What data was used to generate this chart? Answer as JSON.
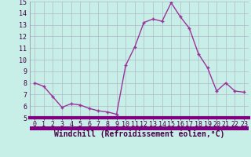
{
  "x": [
    0,
    1,
    2,
    3,
    4,
    5,
    6,
    7,
    8,
    9,
    10,
    11,
    12,
    13,
    14,
    15,
    16,
    17,
    18,
    19,
    20,
    21,
    22,
    23
  ],
  "y": [
    8.0,
    7.7,
    6.8,
    5.9,
    6.2,
    6.1,
    5.8,
    5.6,
    5.5,
    5.3,
    9.5,
    11.1,
    13.2,
    13.5,
    13.3,
    14.9,
    13.7,
    12.7,
    10.5,
    9.3,
    7.3,
    8.0,
    7.3,
    7.2
  ],
  "line_color": "#993399",
  "marker": "+",
  "markersize": 3.5,
  "linewidth": 1.0,
  "xlabel": "Windchill (Refroidissement éolien,°C)",
  "xlabel_fontsize": 7,
  "xlim": [
    -0.5,
    23.5
  ],
  "ylim": [
    5,
    15
  ],
  "yticks": [
    5,
    6,
    7,
    8,
    9,
    10,
    11,
    12,
    13,
    14,
    15
  ],
  "xticks": [
    0,
    1,
    2,
    3,
    4,
    5,
    6,
    7,
    8,
    9,
    10,
    11,
    12,
    13,
    14,
    15,
    16,
    17,
    18,
    19,
    20,
    21,
    22,
    23
  ],
  "bg_color": "#c8eee8",
  "grid_color": "#b0b8c8",
  "tick_fontsize": 6,
  "bottom_bar_color": "#800080",
  "bottom_bar_height": 0.045,
  "spine_color": "#888899"
}
